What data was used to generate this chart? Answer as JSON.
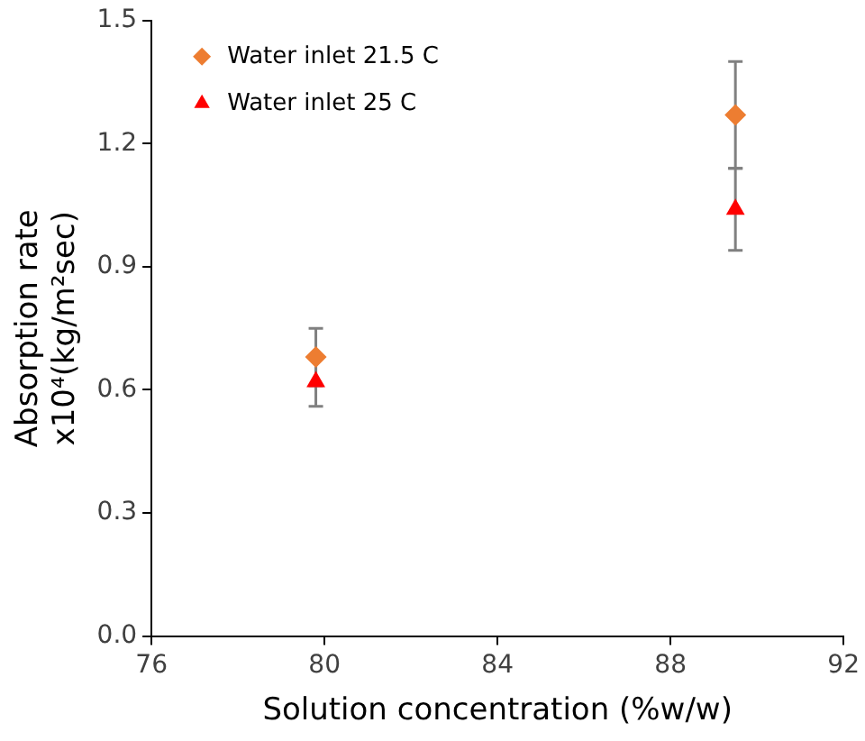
{
  "chart_data": {
    "type": "scatter",
    "xlabel": "Solution concentration (%w/w)",
    "ylabel": "Absorption rate\nx10⁴(kg/m²sec)",
    "xlim": [
      76,
      92
    ],
    "xticks": [
      76,
      80,
      84,
      88,
      92
    ],
    "ylim": [
      0,
      1.5
    ],
    "yticks": [
      {
        "value": 0,
        "label": "0.0"
      },
      0.3,
      0.6,
      0.9,
      1.2,
      1.5
    ],
    "grid": false,
    "legend": "top left",
    "x": [
      79.8,
      89.5
    ],
    "series": [
      {
        "name": "Water inlet 21.5 C",
        "color": "#ed7d31",
        "marker": "diamond",
        "values": [
          0.68,
          1.27
        ],
        "errors": [
          0.07,
          0.13
        ]
      },
      {
        "name": "Water inlet 25 C",
        "color": "#ff0000",
        "marker": "triangle",
        "values": [
          0.62,
          1.04
        ],
        "errors": [
          0.06,
          0.1
        ]
      }
    ]
  }
}
